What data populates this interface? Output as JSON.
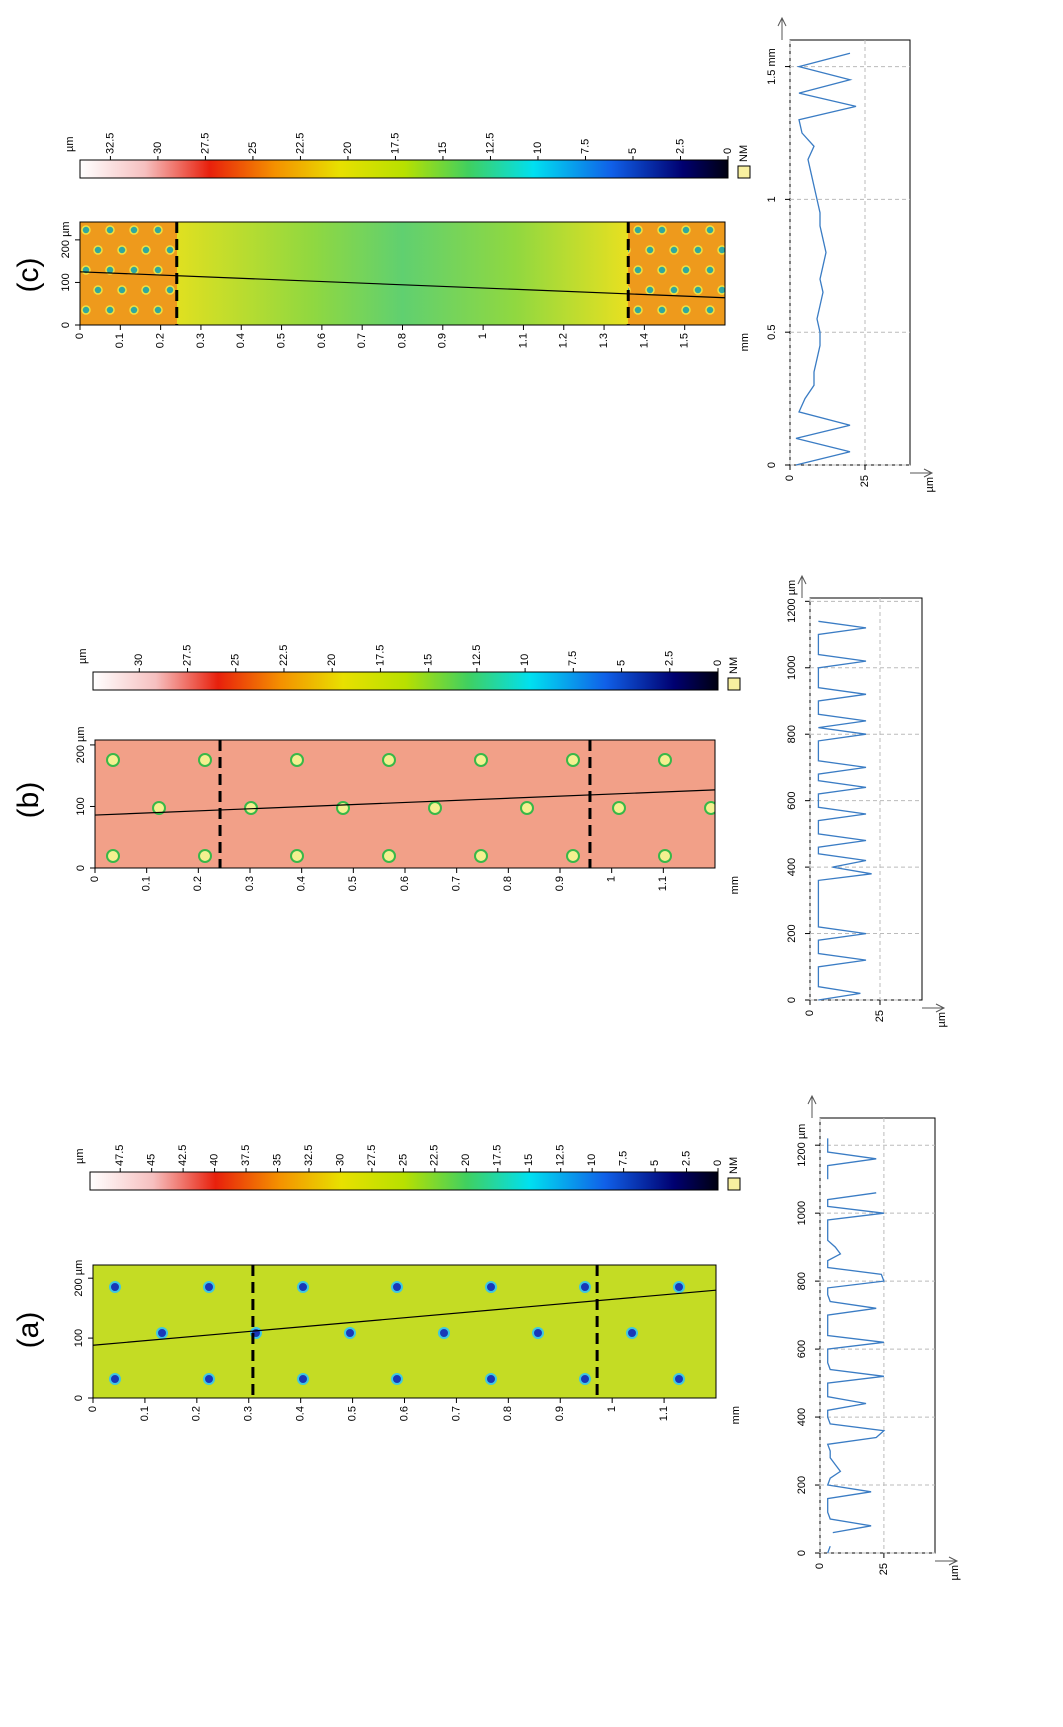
{
  "chart_data": [
    {
      "type": "heatmap",
      "title": "(a)",
      "xlabel": "mm",
      "xlim": [
        0,
        1.2
      ],
      "xticks": [
        0,
        0.1,
        0.2,
        0.3,
        0.4,
        0.5,
        0.6,
        0.7,
        0.8,
        0.9,
        1,
        1.1
      ],
      "ylim": [
        0,
        222
      ],
      "yticks": [
        0,
        100,
        {
          "value": 200,
          "label": "200 µm"
        }
      ],
      "cut_lines": [
        0.308,
        0.971
      ],
      "profile_line": {
        "x": [
          0,
          1.2
        ],
        "y": [
          88,
          180
        ]
      }
    },
    {
      "type": "colorbar",
      "xlabel": "µm",
      "marker_label": "NM",
      "xlim": [
        0,
        49.9
      ],
      "xticks": [
        47.5,
        45,
        42.5,
        40,
        37.5,
        35,
        32.5,
        30,
        27.5,
        25,
        22.5,
        20,
        17.5,
        15,
        12.5,
        10,
        7.5,
        5,
        2.5,
        0
      ]
    },
    {
      "type": "line",
      "ylabel": "µm",
      "xlim": [
        0,
        1280
      ],
      "xticks": [
        0,
        200,
        400,
        600,
        800,
        1000,
        {
          "value": 1200,
          "label": "1200 µm"
        }
      ],
      "ylim": [
        0,
        45
      ],
      "yticks": [
        0,
        25
      ],
      "grid": true,
      "x": [
        0,
        20,
        40,
        60,
        80,
        100,
        120,
        140,
        160,
        180,
        200,
        220,
        240,
        260,
        280,
        300,
        320,
        340,
        360,
        380,
        400,
        420,
        440,
        460,
        480,
        500,
        520,
        540,
        560,
        580,
        600,
        620,
        640,
        660,
        680,
        700,
        720,
        740,
        760,
        780,
        800,
        820,
        840,
        860,
        880,
        900,
        920,
        940,
        960,
        980,
        1000,
        1020,
        1040,
        1060,
        1080,
        1100,
        1120,
        1140,
        1160,
        1180,
        1200,
        1220,
        1240,
        1260
      ],
      "series": [
        {
          "color": "#3a7cc4",
          "values": [
            3,
            4,
            null,
            5,
            20,
            4,
            3,
            3,
            3,
            20,
            3,
            4,
            8,
            6,
            4,
            4,
            3,
            22,
            25,
            4,
            3,
            3,
            18,
            3,
            3,
            3,
            25,
            4,
            3,
            3,
            3,
            25,
            3,
            3,
            3,
            3,
            22,
            4,
            3,
            3,
            25,
            24,
            3,
            3,
            8,
            6,
            3,
            3,
            3,
            3,
            25,
            3,
            3,
            22,
            null,
            3,
            3,
            3,
            22,
            3,
            3,
            3,
            null,
            null
          ]
        }
      ]
    },
    {
      "type": "heatmap",
      "title": "(b)",
      "xlabel": "mm",
      "xlim": [
        0,
        1.2
      ],
      "xticks": [
        0,
        0.1,
        0.2,
        0.3,
        0.4,
        0.5,
        0.6,
        0.7,
        0.8,
        0.9,
        1,
        1.1
      ],
      "ylim": [
        0,
        208
      ],
      "yticks": [
        0,
        100,
        {
          "value": 200,
          "label": "200 µm"
        }
      ],
      "cut_lines": [
        0.242,
        0.958
      ],
      "profile_line": {
        "x": [
          0,
          1.2
        ],
        "y": [
          86,
          127
        ]
      }
    },
    {
      "type": "colorbar",
      "xlabel": "µm",
      "marker_label": "NM",
      "xlim": [
        0,
        32.4
      ],
      "xticks": [
        30,
        27.5,
        25,
        22.5,
        20,
        17.5,
        15,
        12.5,
        10,
        7.5,
        5,
        2.5,
        0
      ]
    },
    {
      "type": "line",
      "ylabel": "µm",
      "xlim": [
        0,
        1210
      ],
      "xticks": [
        0,
        200,
        400,
        600,
        800,
        1000,
        {
          "value": 1200,
          "label": "1200 µm"
        }
      ],
      "ylim": [
        0,
        40
      ],
      "yticks": [
        0,
        25
      ],
      "grid": true,
      "x": [
        0,
        20,
        40,
        60,
        80,
        100,
        120,
        140,
        160,
        180,
        200,
        220,
        240,
        260,
        280,
        300,
        320,
        340,
        360,
        380,
        400,
        420,
        440,
        460,
        480,
        500,
        520,
        540,
        560,
        580,
        600,
        620,
        640,
        660,
        680,
        700,
        720,
        740,
        760,
        780,
        800,
        820,
        840,
        860,
        880,
        900,
        920,
        940,
        960,
        980,
        1000,
        1020,
        1040,
        1060,
        1080,
        1100,
        1120,
        1140,
        1160,
        1180
      ],
      "series": [
        {
          "color": "#3a7cc4",
          "values": [
            3,
            18,
            3,
            3,
            3,
            3,
            20,
            3,
            3,
            3,
            20,
            3,
            3,
            3,
            3,
            3,
            3,
            3,
            3,
            22,
            8,
            20,
            3,
            3,
            20,
            3,
            3,
            3,
            20,
            3,
            3,
            3,
            20,
            3,
            3,
            20,
            3,
            3,
            3,
            3,
            20,
            3,
            20,
            3,
            3,
            3,
            20,
            3,
            3,
            3,
            3,
            20,
            3,
            3,
            3,
            3,
            20,
            3,
            null,
            null
          ]
        }
      ]
    },
    {
      "type": "heatmap",
      "title": "(c)",
      "xlabel": "mm",
      "xlim": [
        0,
        1.6
      ],
      "xticks": [
        0,
        0.1,
        0.2,
        0.3,
        0.4,
        0.5,
        0.6,
        0.7,
        0.8,
        0.9,
        1,
        1.1,
        1.2,
        1.3,
        1.4,
        1.5
      ],
      "ylim": [
        0,
        242
      ],
      "yticks": [
        0,
        100,
        {
          "value": 200,
          "label": "200 µm"
        }
      ],
      "cut_lines": [
        0.24,
        1.36
      ],
      "profile_line": {
        "x": [
          0,
          1.6
        ],
        "y": [
          125,
          64
        ]
      }
    },
    {
      "type": "colorbar",
      "xlabel": "µm",
      "marker_label": "NM",
      "xlim": [
        0,
        34.1
      ],
      "xticks": [
        32.5,
        30,
        27.5,
        25,
        22.5,
        20,
        17.5,
        15,
        12.5,
        10,
        7.5,
        5,
        2.5,
        0
      ]
    },
    {
      "type": "line",
      "ylabel": "µm",
      "xlim": [
        0,
        1.6
      ],
      "xticks": [
        0,
        0.5,
        1,
        {
          "value": 1.5,
          "label": "1.5 mm"
        }
      ],
      "ylim": [
        0,
        40
      ],
      "yticks": [
        0,
        25
      ],
      "grid": true,
      "x": [
        0,
        0.05,
        0.1,
        0.15,
        0.2,
        0.25,
        0.3,
        0.35,
        0.4,
        0.45,
        0.5,
        0.55,
        0.6,
        0.65,
        0.7,
        0.75,
        0.8,
        0.85,
        0.9,
        0.95,
        1,
        1.05,
        1.1,
        1.15,
        1.2,
        1.25,
        1.3,
        1.35,
        1.4,
        1.45,
        1.5,
        1.55
      ],
      "series": [
        {
          "color": "#3a7cc4",
          "values": [
            2,
            20,
            2,
            20,
            3,
            5,
            8,
            8,
            9,
            10,
            10,
            9,
            10,
            11,
            10,
            11,
            12,
            11,
            10,
            10,
            9,
            8,
            7,
            6,
            8,
            4,
            3,
            22,
            3,
            20,
            3,
            20
          ]
        }
      ]
    }
  ]
}
